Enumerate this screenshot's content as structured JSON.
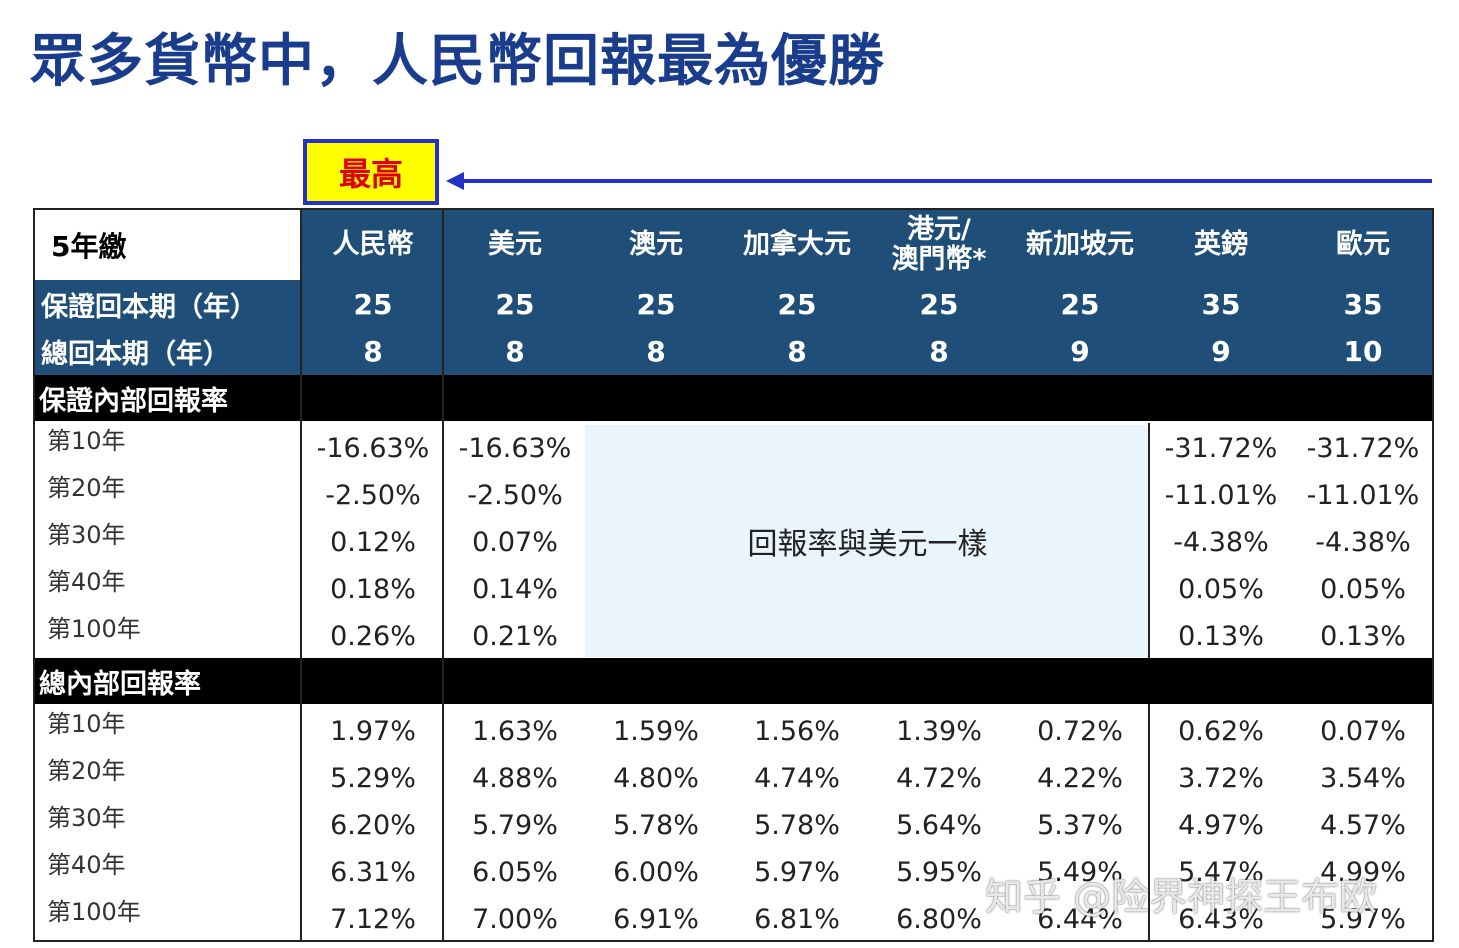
{
  "title": "眾多貨幣中，人民幣回報最為優勝",
  "badge": "最高",
  "corner": "5年繳",
  "currencies": [
    {
      "label": "人民幣"
    },
    {
      "label": "美元"
    },
    {
      "label": "澳元"
    },
    {
      "label": "加拿大元"
    },
    {
      "label": "港元/",
      "label2": "澳門幣*"
    },
    {
      "label": "新加坡元"
    },
    {
      "label": "英鎊"
    },
    {
      "label": "歐元"
    }
  ],
  "breakeven": {
    "guaranteed_label": "保證回本期（年）",
    "guaranteed": [
      "25",
      "25",
      "25",
      "25",
      "25",
      "25",
      "35",
      "35"
    ],
    "total_label": "總回本期（年）",
    "total": [
      "8",
      "8",
      "8",
      "8",
      "8",
      "9",
      "9",
      "10"
    ]
  },
  "guaranteed_irr": {
    "section_label": "保證內部回報率",
    "same_as_usd_note": "回報率與美元一樣",
    "rows": [
      {
        "label": "第10年",
        "values": [
          "-16.63%",
          "-16.63%",
          "",
          "",
          "",
          "",
          "-31.72%",
          "-31.72%"
        ]
      },
      {
        "label": "第20年",
        "values": [
          "-2.50%",
          "-2.50%",
          "",
          "",
          "",
          "",
          "-11.01%",
          "-11.01%"
        ]
      },
      {
        "label": "第30年",
        "values": [
          "0.12%",
          "0.07%",
          "",
          "",
          "",
          "",
          "-4.38%",
          "-4.38%"
        ]
      },
      {
        "label": "第40年",
        "values": [
          "0.18%",
          "0.14%",
          "",
          "",
          "",
          "",
          "0.05%",
          "0.05%"
        ]
      },
      {
        "label": "第100年",
        "values": [
          "0.26%",
          "0.21%",
          "",
          "",
          "",
          "",
          "0.13%",
          "0.13%"
        ]
      }
    ]
  },
  "total_irr": {
    "section_label": "總內部回報率",
    "rows": [
      {
        "label": "第10年",
        "values": [
          "1.97%",
          "1.63%",
          "1.59%",
          "1.56%",
          "1.39%",
          "0.72%",
          "0.62%",
          "0.07%"
        ]
      },
      {
        "label": "第20年",
        "values": [
          "5.29%",
          "4.88%",
          "4.80%",
          "4.74%",
          "4.72%",
          "4.22%",
          "3.72%",
          "3.54%"
        ]
      },
      {
        "label": "第30年",
        "values": [
          "6.20%",
          "5.79%",
          "5.78%",
          "5.78%",
          "5.64%",
          "5.37%",
          "4.97%",
          "4.57%"
        ]
      },
      {
        "label": "第40年",
        "values": [
          "6.31%",
          "6.05%",
          "6.00%",
          "5.97%",
          "5.95%",
          "5.49%",
          "5.47%",
          "4.99%"
        ]
      },
      {
        "label": "第100年",
        "values": [
          "7.12%",
          "7.00%",
          "6.91%",
          "6.81%",
          "6.80%",
          "6.44%",
          "6.43%",
          "5.97%"
        ]
      }
    ]
  },
  "watermark": "知乎 @险界神探王布欧",
  "colors": {
    "header_blue": "#1f4e79",
    "title_blue": "#1a3c8c",
    "badge_yellow": "#ffff00",
    "badge_red": "#e00000",
    "arrow_blue": "#2432c8",
    "note_bg": "#eaf4fc"
  }
}
